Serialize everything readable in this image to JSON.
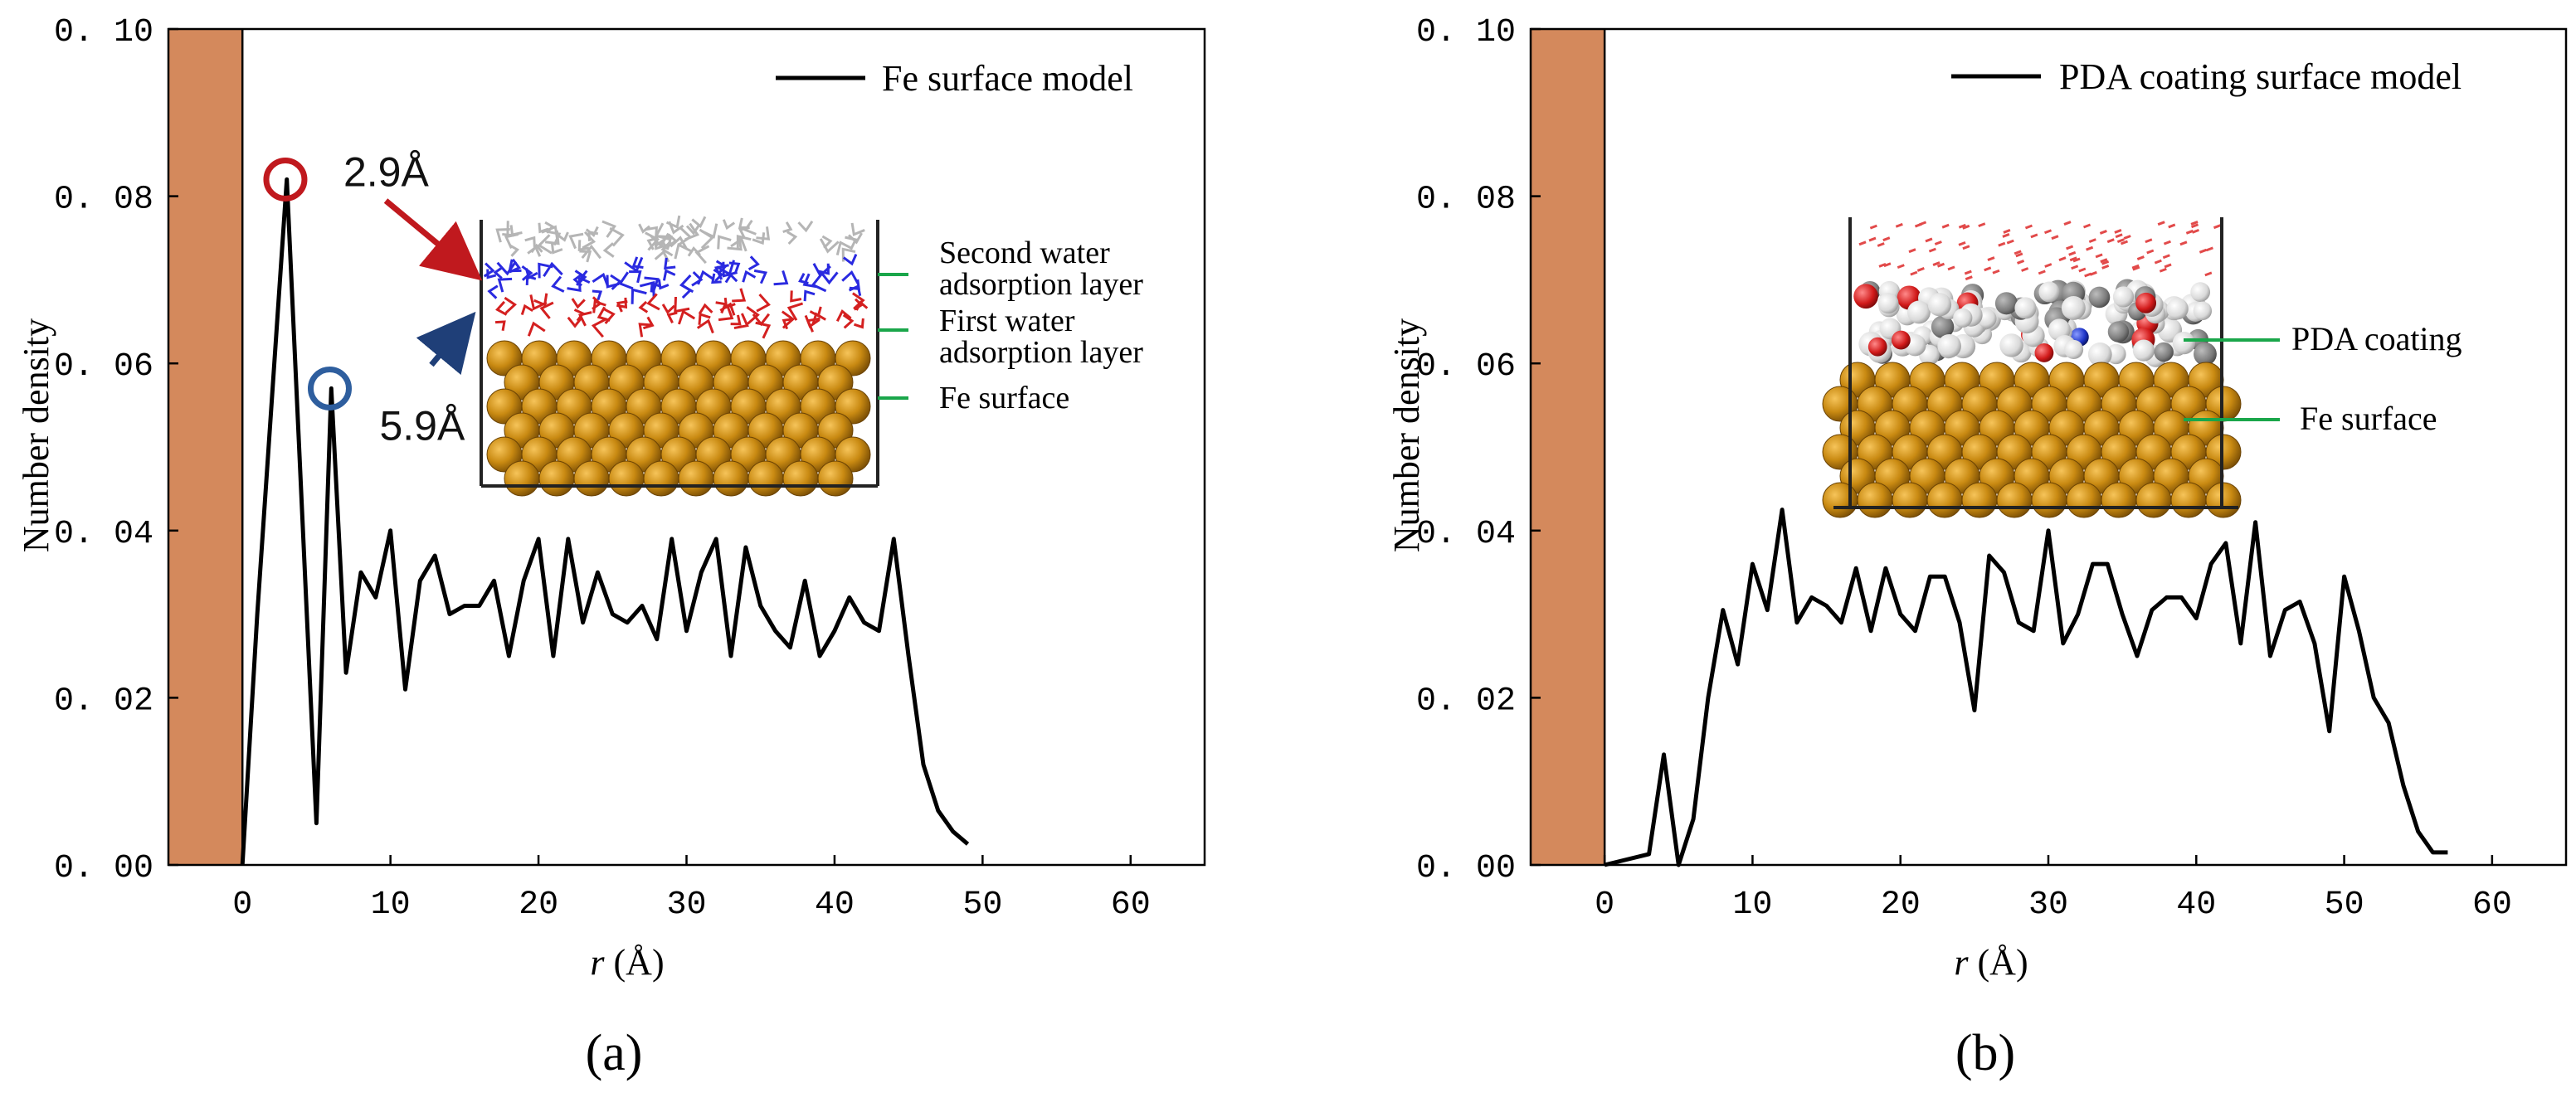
{
  "chart_data": [
    {
      "type": "line",
      "panel_label": "(a)",
      "xlabel": "r (Å)",
      "xlabel_var": "r",
      "xlabel_unit": " (Å)",
      "ylabel": "Number density",
      "xlim": [
        -5,
        65
      ],
      "ylim": [
        0,
        0.1
      ],
      "xticks": [
        0,
        10,
        20,
        30,
        40,
        50,
        60
      ],
      "yticks": [
        0.0,
        0.02,
        0.04,
        0.06,
        0.08,
        0.1
      ],
      "ytick_labels": [
        "0. 00",
        "0. 02",
        "0. 04",
        "0. 06",
        "0. 08",
        "0. 10"
      ],
      "grid": false,
      "legend_position": "top-right",
      "wall": {
        "from": -5,
        "to": 0,
        "color": "#D4895C"
      },
      "series": [
        {
          "name": "Fe surface model",
          "color": "#000000",
          "x": [
            0,
            1,
            3,
            5,
            6,
            7,
            8,
            9,
            10,
            11,
            12,
            13,
            14,
            15,
            16,
            17,
            18,
            19,
            20,
            21,
            22,
            23,
            24,
            25,
            26,
            27,
            28,
            29,
            30,
            31,
            32,
            33,
            34,
            35,
            36,
            37,
            38,
            39,
            40,
            41,
            42,
            43,
            44,
            45,
            46,
            47,
            48,
            49
          ],
          "y": [
            0.0,
            0.03,
            0.082,
            0.005,
            0.057,
            0.023,
            0.035,
            0.032,
            0.04,
            0.021,
            0.034,
            0.037,
            0.03,
            0.031,
            0.031,
            0.034,
            0.025,
            0.034,
            0.039,
            0.025,
            0.039,
            0.029,
            0.035,
            0.03,
            0.029,
            0.031,
            0.027,
            0.039,
            0.028,
            0.035,
            0.039,
            0.025,
            0.038,
            0.031,
            0.028,
            0.026,
            0.034,
            0.025,
            0.028,
            0.032,
            0.029,
            0.028,
            0.039,
            0.025,
            0.012,
            0.0065,
            0.004,
            0.0025
          ]
        }
      ],
      "annotations": [
        {
          "text": "2.9Å",
          "x": 2.9,
          "y": 0.082,
          "color": "#C0191E"
        },
        {
          "text": "5.9Å",
          "x": 5.9,
          "y": 0.057,
          "color": "#2E5E9E"
        }
      ],
      "inset": {
        "labels": [
          "Second water",
          "adsorption layer",
          "First water",
          "adsorption layer",
          "Fe surface"
        ]
      }
    },
    {
      "type": "line",
      "panel_label": "(b)",
      "xlabel": "r (Å)",
      "xlabel_var": "r",
      "xlabel_unit": " (Å)",
      "ylabel": "Number density",
      "xlim": [
        -5,
        65
      ],
      "ylim": [
        0,
        0.1
      ],
      "xticks": [
        0,
        10,
        20,
        30,
        40,
        50,
        60
      ],
      "yticks": [
        0.0,
        0.02,
        0.04,
        0.06,
        0.08,
        0.1
      ],
      "ytick_labels": [
        "0. 00",
        "0. 02",
        "0. 04",
        "0. 06",
        "0. 08",
        "0. 10"
      ],
      "grid": false,
      "legend_position": "top-right",
      "wall": {
        "from": -5,
        "to": 0,
        "color": "#D4895C"
      },
      "series": [
        {
          "name": "PDA coating surface model",
          "color": "#000000",
          "x": [
            0,
            3,
            4,
            5,
            6,
            7,
            8,
            9,
            10,
            11,
            12,
            13,
            14,
            15,
            16,
            17,
            18,
            19,
            20,
            21,
            22,
            23,
            24,
            25,
            26,
            27,
            28,
            29,
            30,
            31,
            32,
            33,
            34,
            35,
            36,
            37,
            38,
            39,
            40,
            41,
            42,
            43,
            44,
            45,
            46,
            47,
            48,
            49,
            50,
            51,
            52,
            53,
            54,
            55,
            56,
            57
          ],
          "y": [
            0.0,
            0.0013,
            0.0132,
            0.0,
            0.0055,
            0.02,
            0.0305,
            0.024,
            0.036,
            0.0305,
            0.0425,
            0.029,
            0.032,
            0.031,
            0.029,
            0.0355,
            0.028,
            0.0355,
            0.03,
            0.028,
            0.0345,
            0.0345,
            0.029,
            0.0185,
            0.037,
            0.035,
            0.029,
            0.028,
            0.04,
            0.0265,
            0.03,
            0.036,
            0.036,
            0.03,
            0.025,
            0.0305,
            0.032,
            0.032,
            0.0295,
            0.036,
            0.0385,
            0.0265,
            0.041,
            0.025,
            0.0305,
            0.0315,
            0.0265,
            0.016,
            0.0345,
            0.028,
            0.02,
            0.017,
            0.0095,
            0.004,
            0.0015,
            0.0015
          ]
        }
      ],
      "annotations": [],
      "inset": {
        "labels": [
          "PDA coating",
          "Fe surface"
        ]
      }
    }
  ]
}
